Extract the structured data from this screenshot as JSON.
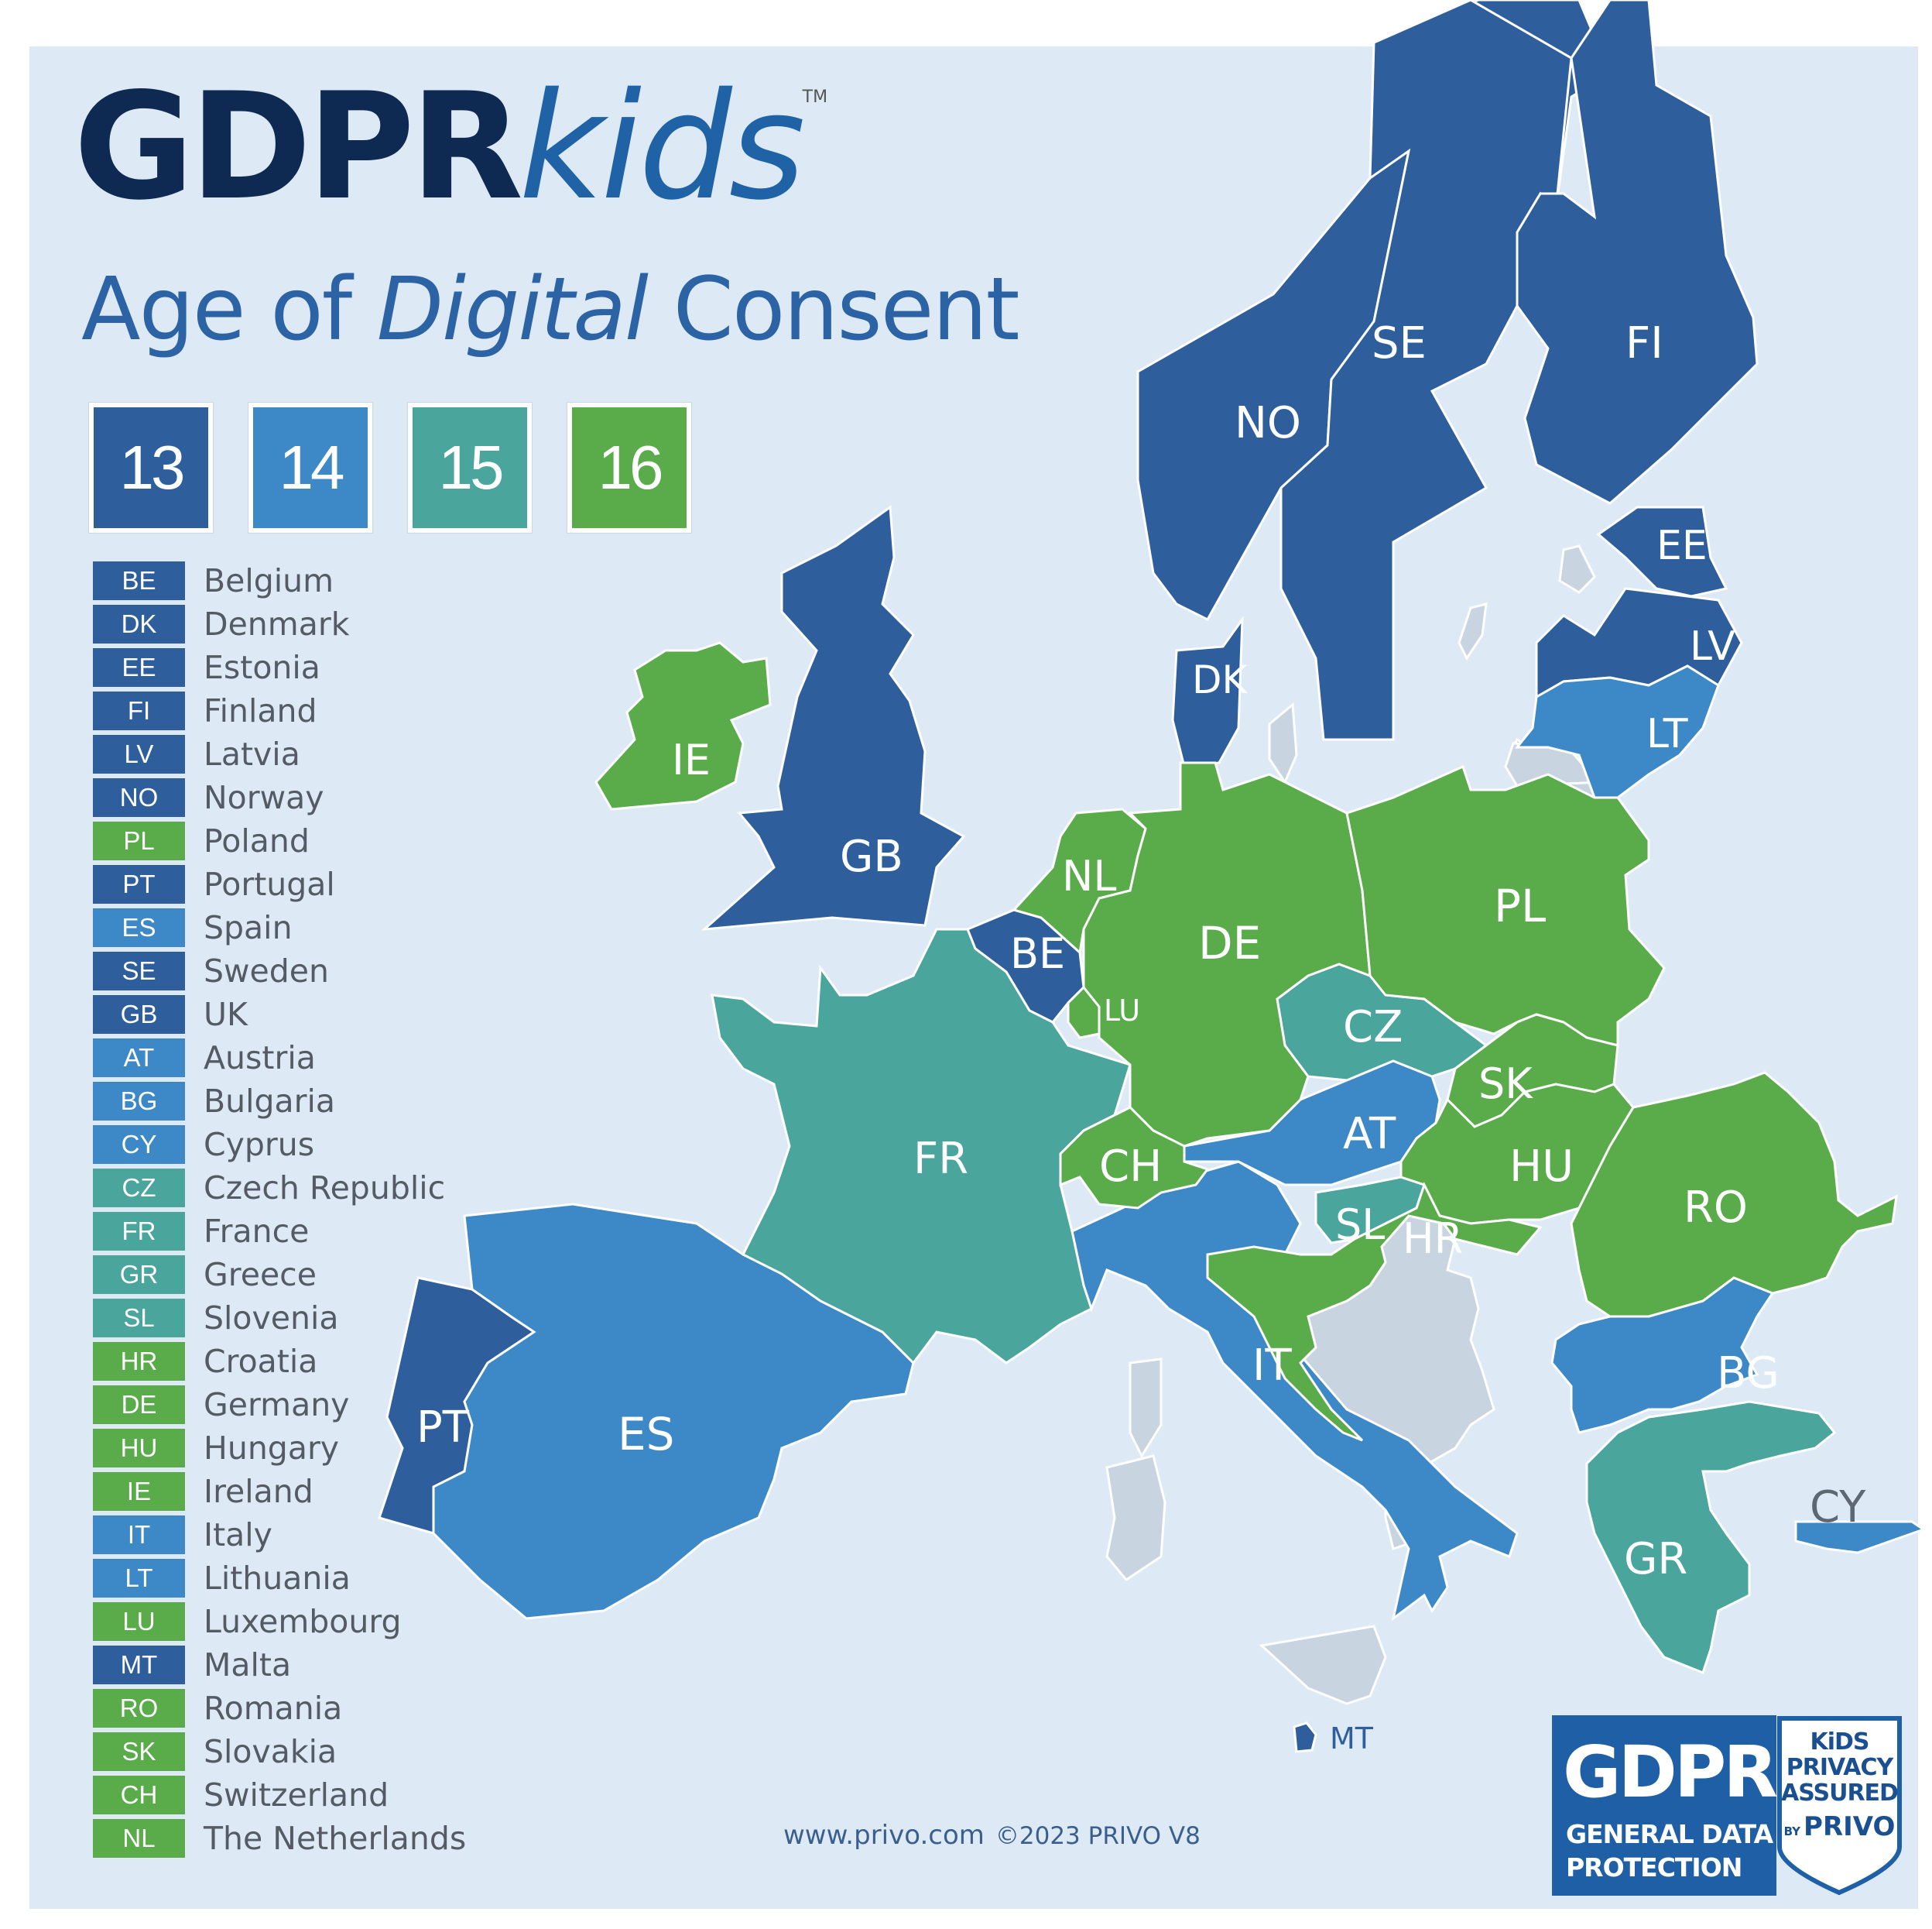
{
  "brand": {
    "gdpr": "GDPR",
    "kids": "kids",
    "tm": "TM"
  },
  "title": {
    "part1": "Age of ",
    "part2": "Digital",
    "part3": " Consent"
  },
  "colors": {
    "13": "#2e5f9c",
    "14": "#3d88c6",
    "15": "#4aa59c",
    "16": "#5aab4a",
    "background": "#ddeaf6",
    "non_gdpr": "#c8d4e0"
  },
  "age_keys": [
    "13",
    "14",
    "15",
    "16"
  ],
  "legend": [
    {
      "code": "BE",
      "name": "Belgium",
      "age": "13"
    },
    {
      "code": "DK",
      "name": "Denmark",
      "age": "13"
    },
    {
      "code": "EE",
      "name": "Estonia",
      "age": "13"
    },
    {
      "code": "FI",
      "name": "Finland",
      "age": "13"
    },
    {
      "code": "LV",
      "name": "Latvia",
      "age": "13"
    },
    {
      "code": "NO",
      "name": "Norway",
      "age": "13"
    },
    {
      "code": "PL",
      "name": "Poland",
      "age": "16"
    },
    {
      "code": "PT",
      "name": "Portugal",
      "age": "13"
    },
    {
      "code": "ES",
      "name": "Spain",
      "age": "14"
    },
    {
      "code": "SE",
      "name": "Sweden",
      "age": "13"
    },
    {
      "code": "GB",
      "name": "UK",
      "age": "13"
    },
    {
      "code": "AT",
      "name": "Austria",
      "age": "14"
    },
    {
      "code": "BG",
      "name": "Bulgaria",
      "age": "14"
    },
    {
      "code": "CY",
      "name": "Cyprus",
      "age": "14"
    },
    {
      "code": "CZ",
      "name": "Czech Republic",
      "age": "15"
    },
    {
      "code": "FR",
      "name": "France",
      "age": "15"
    },
    {
      "code": "GR",
      "name": "Greece",
      "age": "15"
    },
    {
      "code": "SL",
      "name": "Slovenia",
      "age": "15"
    },
    {
      "code": "HR",
      "name": "Croatia",
      "age": "16"
    },
    {
      "code": "DE",
      "name": "Germany",
      "age": "16"
    },
    {
      "code": "HU",
      "name": "Hungary",
      "age": "16"
    },
    {
      "code": "IE",
      "name": "Ireland",
      "age": "16"
    },
    {
      "code": "IT",
      "name": "Italy",
      "age": "14"
    },
    {
      "code": "LT",
      "name": "Lithuania",
      "age": "14"
    },
    {
      "code": "LU",
      "name": "Luxembourg",
      "age": "16"
    },
    {
      "code": "MT",
      "name": "Malta",
      "age": "13"
    },
    {
      "code": "RO",
      "name": "Romania",
      "age": "16"
    },
    {
      "code": "SK",
      "name": "Slovakia",
      "age": "16"
    },
    {
      "code": "CH",
      "name": "Switzerland",
      "age": "16"
    },
    {
      "code": "NL",
      "name": "The Netherlands",
      "age": "16"
    }
  ],
  "map_labels": {
    "NO": "NO",
    "SE": "SE",
    "FI": "FI",
    "EE": "EE",
    "LV": "LV",
    "LT": "LT",
    "DK": "DK",
    "IE": "IE",
    "GB": "GB",
    "NL": "NL",
    "BE": "BE",
    "LU": "LU",
    "DE": "DE",
    "PL": "PL",
    "CZ": "CZ",
    "SK": "SK",
    "AT": "AT",
    "HU": "HU",
    "CH": "CH",
    "FR": "FR",
    "RO": "RO",
    "SL": "SL",
    "HR": "HR",
    "IT": "IT",
    "BG": "BG",
    "PT": "PT",
    "ES": "ES",
    "GR": "GR",
    "CY": "CY",
    "MT": "MT"
  },
  "footer": {
    "url": "www.privo.com",
    "copyright": "©2023 PRIVO V8"
  },
  "badge": {
    "gdpr": "GDPR",
    "line1": "GENERAL DATA",
    "line2": "PROTECTION",
    "shield_line1": "KiDS",
    "shield_line2": "PRIVACY",
    "shield_line3": "ASSURED",
    "shield_by": "BY",
    "shield_brand": "PRIVO"
  }
}
